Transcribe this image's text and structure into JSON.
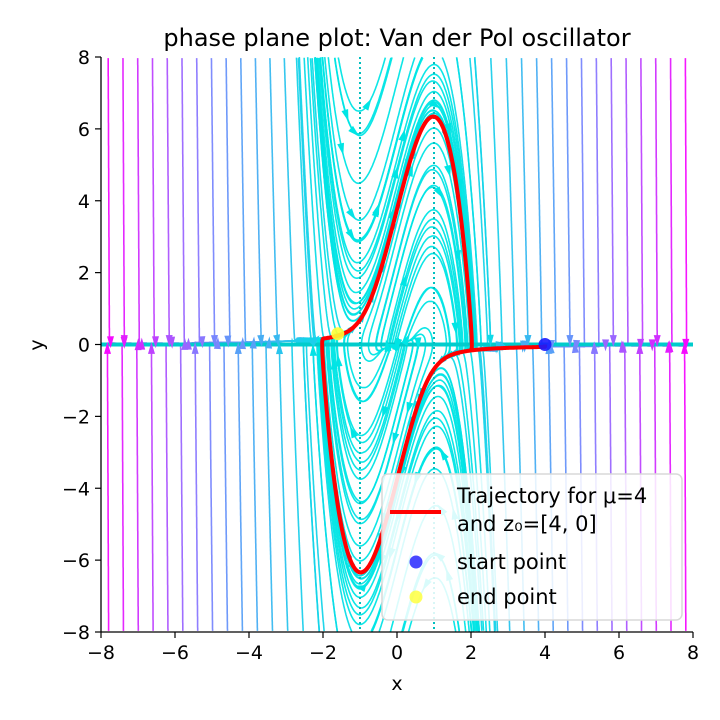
{
  "chart_data": {
    "type": "phase-plane",
    "title": "phase plane plot: Van der Pol oscillator",
    "xlabel": "x",
    "ylabel": "y",
    "xlim": [
      -8,
      8
    ],
    "ylim": [
      -8,
      8
    ],
    "xticks": [
      "−8",
      "−6",
      "−4",
      "−2",
      "0",
      "2",
      "4",
      "6",
      "8"
    ],
    "yticks": [
      "−8",
      "−6",
      "−4",
      "−2",
      "0",
      "2",
      "4",
      "6",
      "8"
    ],
    "mu": 4,
    "start_point": [
      4,
      0
    ],
    "end_point": [
      -1.6,
      0.3
    ],
    "limit_cycle_amplitude": {
      "x": 2.0,
      "y": 6.2
    },
    "stream_color_scale": [
      "#00e5e5",
      "#8080ff",
      "#ff00ff"
    ],
    "trajectory_color": "#ff0000",
    "start_color": "#1a1aff",
    "end_color": "#ffff33",
    "grid": false,
    "legend_position": "lower-right",
    "legend": [
      {
        "label": "Trajectory for μ=4",
        "label2": "and z₀=[4, 0]",
        "type": "line"
      },
      {
        "label": "start point",
        "type": "marker"
      },
      {
        "label": "end point",
        "type": "marker"
      }
    ]
  }
}
